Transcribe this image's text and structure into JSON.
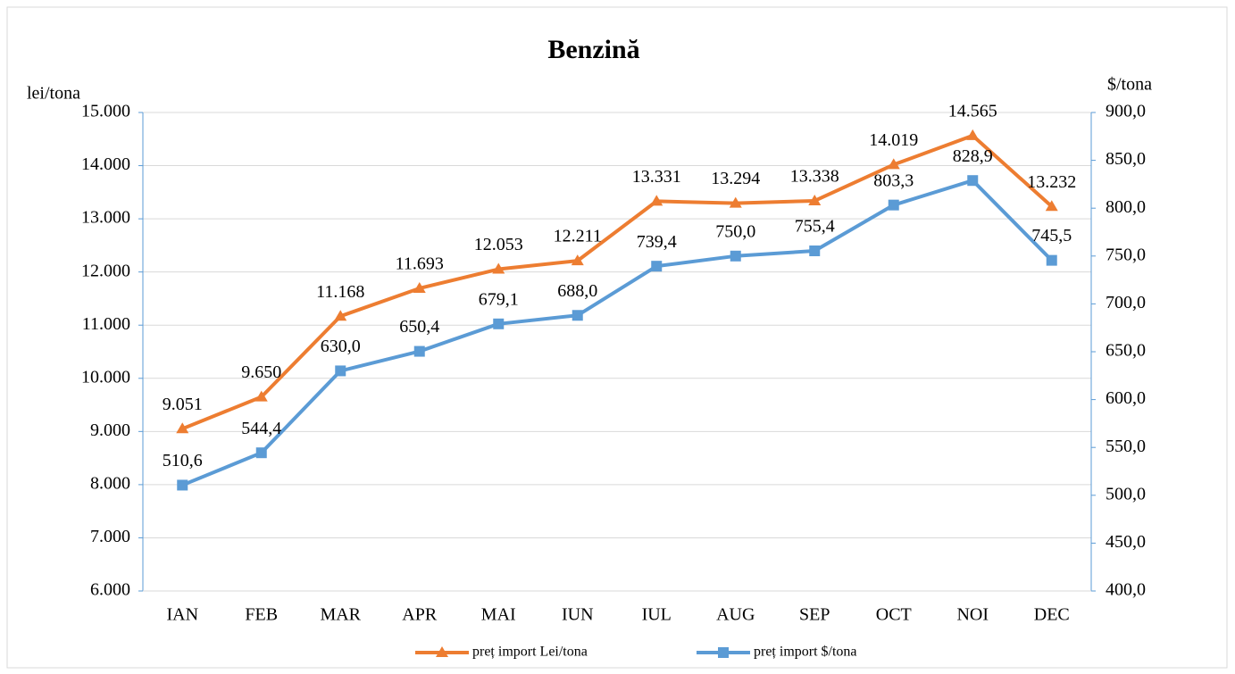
{
  "chart_data": {
    "type": "line",
    "title": "Benzină",
    "y_label": "lei/tona",
    "y2_label": "$/tona",
    "categories": [
      "IAN",
      "FEB",
      "MAR",
      "APR",
      "MAI",
      "IUN",
      "IUL",
      "AUG",
      "SEP",
      "OCT",
      "NOI",
      "DEC"
    ],
    "series": [
      {
        "name": "preț import Lei/tona",
        "color": "#ed7d31",
        "marker": "triangle",
        "values": [
          9051,
          9650,
          11168,
          11693,
          12053,
          12211,
          13331,
          13294,
          13338,
          14019,
          14565,
          13232
        ],
        "value_labels": [
          "9.051",
          "9.650",
          "11.168",
          "11.693",
          "12.053",
          "12.211",
          "13.331",
          "13.294",
          "13.338",
          "14.019",
          "14.565",
          "13.232"
        ]
      },
      {
        "name": "preț import $/tona",
        "color": "#5b9bd5",
        "marker": "square",
        "axis": "y2",
        "values": [
          510.6,
          544.4,
          630.0,
          650.4,
          679.1,
          688.0,
          739.4,
          750.0,
          755.4,
          803.3,
          828.9,
          745.5
        ],
        "value_labels": [
          "510,6",
          "544,4",
          "630,0",
          "650,4",
          "679,1",
          "688,0",
          "739,4",
          "750,0",
          "755,4",
          "803,3",
          "828,9",
          "745,5"
        ]
      }
    ],
    "ylim": [
      6000,
      15000
    ],
    "yticks": [
      {
        "value": 6000,
        "label": "6.000"
      },
      {
        "value": 7000,
        "label": "7.000"
      },
      {
        "value": 8000,
        "label": "8.000"
      },
      {
        "value": 9000,
        "label": "9.000"
      },
      {
        "value": 10000,
        "label": "10.000"
      },
      {
        "value": 11000,
        "label": "11.000"
      },
      {
        "value": 12000,
        "label": "12.000"
      },
      {
        "value": 13000,
        "label": "13.000"
      },
      {
        "value": 14000,
        "label": "14.000"
      },
      {
        "value": 15000,
        "label": "15.000"
      }
    ],
    "y2lim": [
      400,
      900
    ],
    "y2ticks": [
      {
        "value": 400,
        "label": "400,0"
      },
      {
        "value": 450,
        "label": "450,0"
      },
      {
        "value": 500,
        "label": "500,0"
      },
      {
        "value": 550,
        "label": "550,0"
      },
      {
        "value": 600,
        "label": "600,0"
      },
      {
        "value": 650,
        "label": "650,0"
      },
      {
        "value": 700,
        "label": "700,0"
      },
      {
        "value": 750,
        "label": "750,0"
      },
      {
        "value": 800,
        "label": "800,0"
      },
      {
        "value": 850,
        "label": "850,0"
      },
      {
        "value": 900,
        "label": "900,0"
      }
    ],
    "grid": true,
    "legend": "bottom"
  }
}
